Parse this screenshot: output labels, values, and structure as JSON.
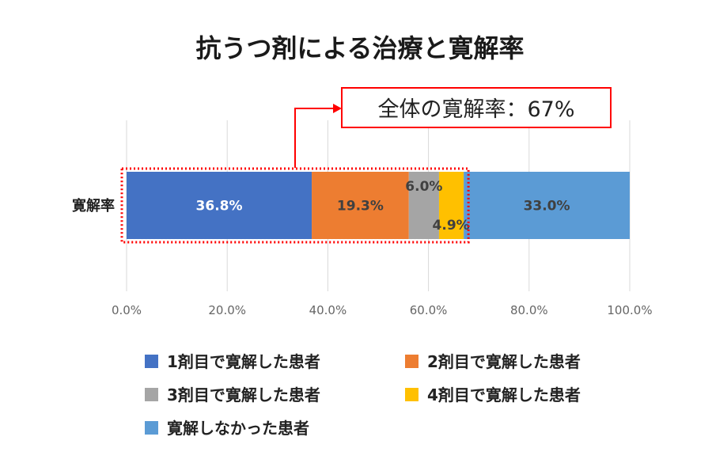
{
  "chart_data": {
    "type": "bar",
    "orientation": "horizontal",
    "stacked": true,
    "title": "抗うつ剤による治療と寛解率",
    "categories": [
      "寛解率"
    ],
    "series": [
      {
        "name": "1剤目で寛解した患者",
        "values": [
          36.8
        ],
        "label": "36.8%",
        "color": "#4472C4",
        "label_color": "#ffffff"
      },
      {
        "name": "2剤目で寛解した患者",
        "values": [
          19.3
        ],
        "label": "19.3%",
        "color": "#ED7D31",
        "label_color": "#404040"
      },
      {
        "name": "3剤目で寛解した患者",
        "values": [
          6.0
        ],
        "label": "6.0%",
        "color": "#A5A5A5",
        "label_color": "#404040"
      },
      {
        "name": "4剤目で寛解した患者",
        "values": [
          4.9
        ],
        "label": "4.9%",
        "color": "#FFC000",
        "label_color": "#404040"
      },
      {
        "name": "寛解しなかった患者",
        "values": [
          33.0
        ],
        "label": "33.0%",
        "color": "#5B9BD5",
        "label_color": "#404040"
      }
    ],
    "xlim": [
      0,
      100
    ],
    "xticks": [
      0,
      20,
      40,
      60,
      80,
      100
    ],
    "xtick_labels": [
      "0.0%",
      "20.0%",
      "40.0%",
      "60.0%",
      "80.0%",
      "100.0%"
    ],
    "grid": true,
    "legend_position": "bottom",
    "annotation": {
      "text": "全体の寛解率：67%",
      "value": 67,
      "highlight_range": [
        0,
        67
      ],
      "color": "#FF0000"
    }
  }
}
